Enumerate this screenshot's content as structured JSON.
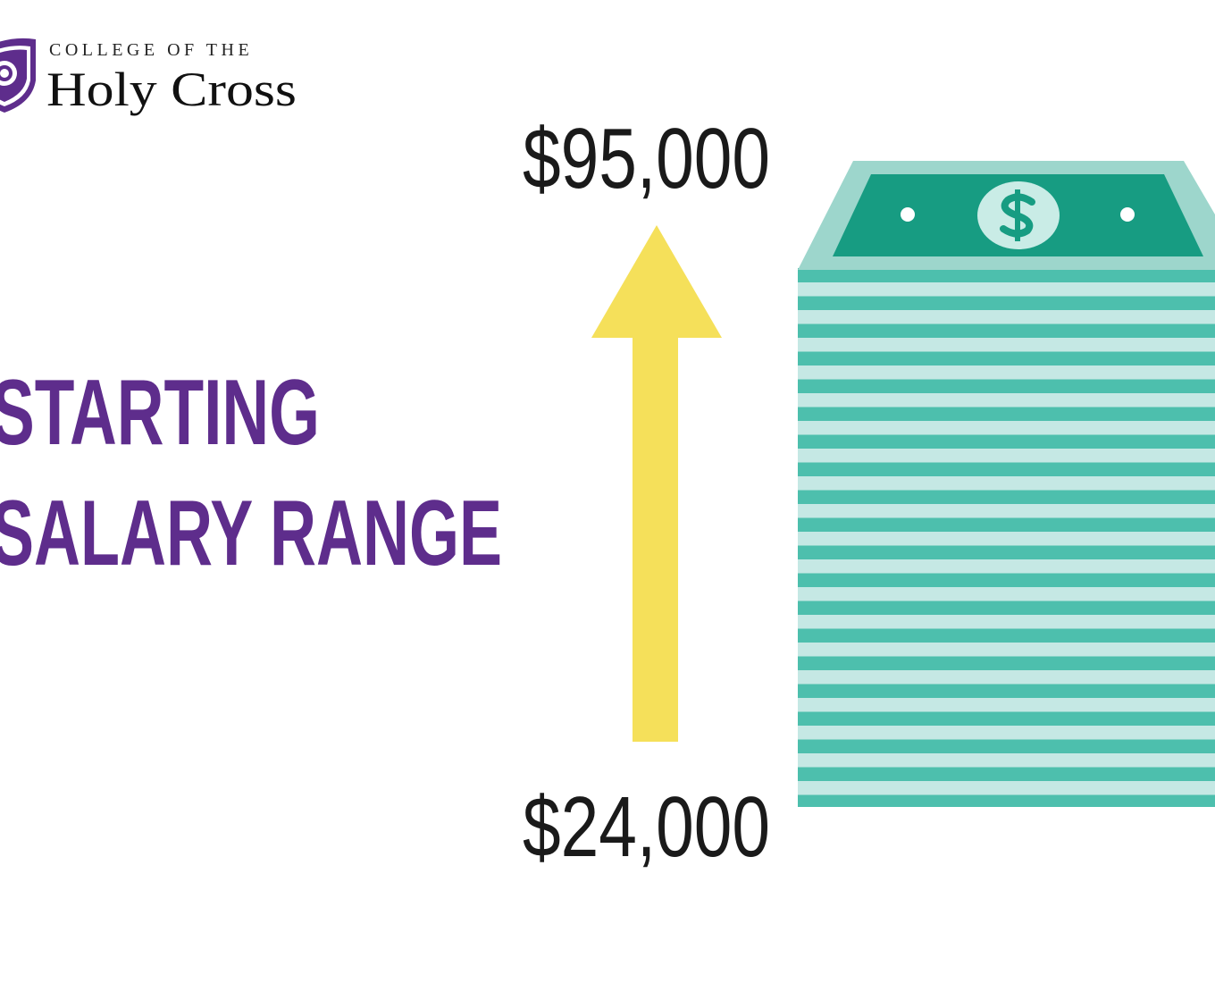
{
  "logo": {
    "line1": "COLLEGE OF THE",
    "line2": "Holy Cross"
  },
  "heading": {
    "line1": "STARTING",
    "line2": "SALARY RANGE"
  },
  "range": {
    "high": "$95,000",
    "low": "$24,000"
  }
}
